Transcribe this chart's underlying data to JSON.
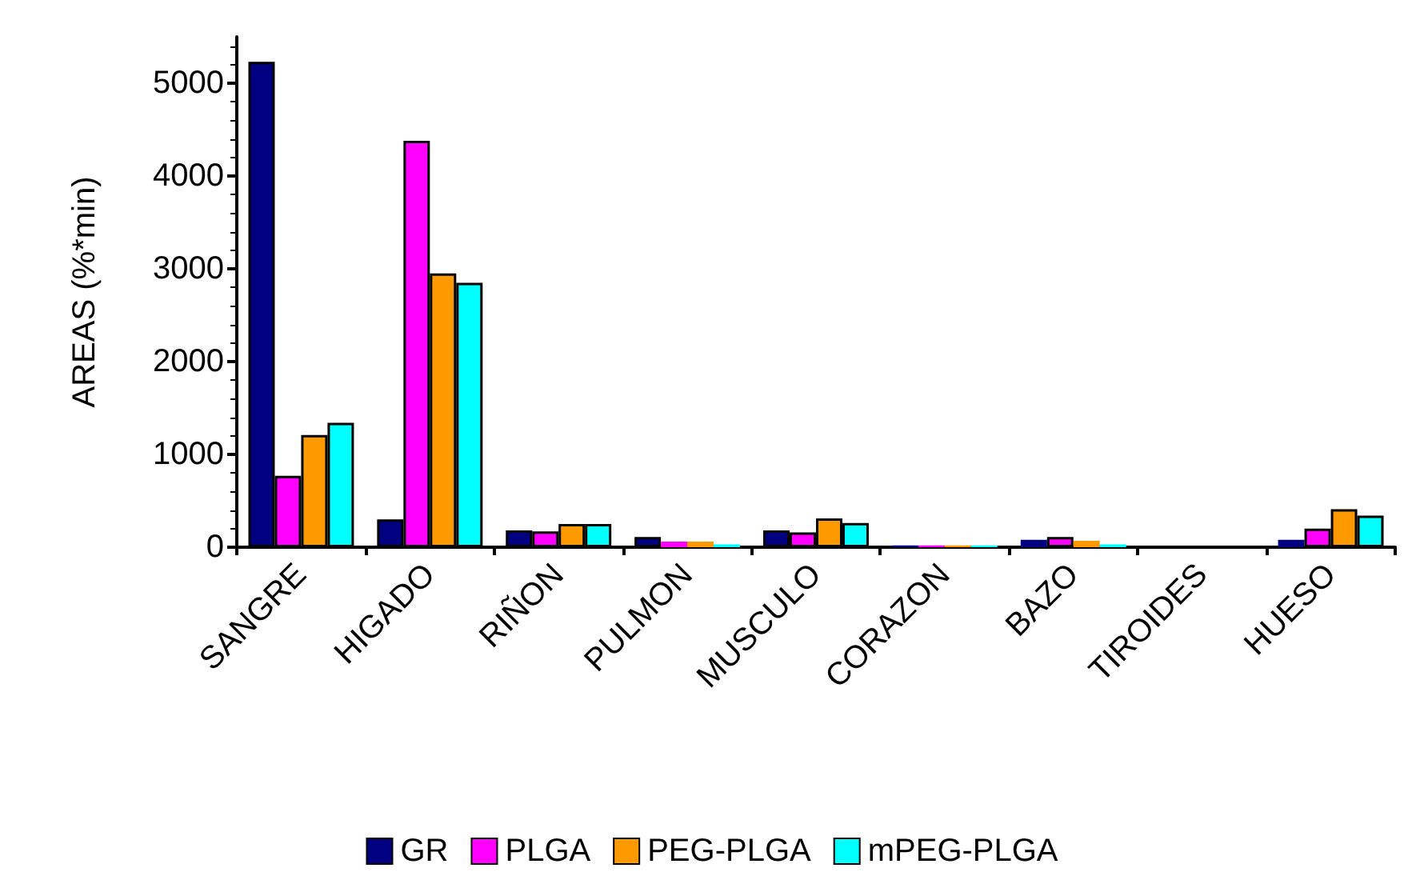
{
  "chart_data": {
    "type": "bar",
    "ylabel": "AREAS (%*min)",
    "categories": [
      "SANGRE",
      "HIGADO",
      "RIÑON",
      "PULMON",
      "MUSCULO",
      "CORAZON",
      "BAZO",
      "TIROIDES",
      "HUESO"
    ],
    "series": [
      {
        "name": "GR",
        "color": "#000080",
        "values": [
          5230,
          300,
          180,
          110,
          180,
          20,
          80,
          0,
          80
        ]
      },
      {
        "name": "PLGA",
        "color": "#ff00ff",
        "values": [
          770,
          4380,
          170,
          60,
          160,
          20,
          110,
          0,
          200
        ]
      },
      {
        "name": "PEG-PLGA",
        "color": "#ff9900",
        "values": [
          1210,
          2950,
          250,
          60,
          310,
          20,
          70,
          0,
          410
        ]
      },
      {
        "name": "mPEG-PLGA",
        "color": "#00ffff",
        "values": [
          1340,
          2850,
          250,
          30,
          260,
          20,
          30,
          0,
          340
        ]
      }
    ],
    "ylim": [
      0,
      5500
    ],
    "yticks": [
      0,
      1000,
      2000,
      3000,
      4000,
      5000
    ],
    "grid": false,
    "legend": "bottom"
  }
}
